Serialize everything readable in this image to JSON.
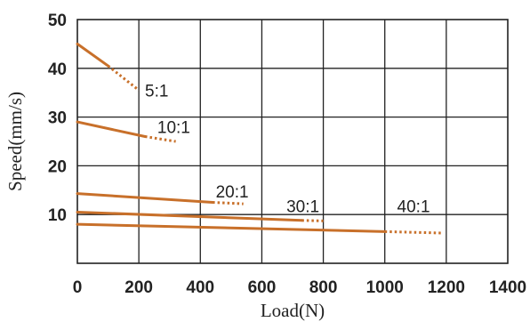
{
  "chart_data": {
    "type": "line",
    "xlabel": "Load(N)",
    "ylabel": "Speed(mm/s)",
    "xlim": [
      0,
      1400
    ],
    "ylim": [
      0,
      50
    ],
    "x_ticks": [
      "0",
      "200",
      "400",
      "600",
      "800",
      "1000",
      "1200",
      "1400"
    ],
    "y_ticks": [
      "10",
      "20",
      "30",
      "40",
      "50"
    ],
    "grid": true,
    "line_color": "#c8702a",
    "series": [
      {
        "name": "5:1",
        "solid": [
          [
            0,
            45
          ],
          [
            100,
            40.5
          ]
        ],
        "dotted": [
          [
            100,
            40.5
          ],
          [
            200,
            35.5
          ]
        ],
        "label_at": [
          220,
          35.5
        ]
      },
      {
        "name": "10:1",
        "solid": [
          [
            0,
            29
          ],
          [
            220,
            26
          ]
        ],
        "dotted": [
          [
            220,
            26
          ],
          [
            320,
            25
          ]
        ],
        "label_at": [
          260,
          28
        ]
      },
      {
        "name": "20:1",
        "solid": [
          [
            0,
            14.3
          ],
          [
            440,
            12.5
          ]
        ],
        "dotted": [
          [
            440,
            12.5
          ],
          [
            540,
            12.2
          ]
        ],
        "label_at": [
          450,
          14.8
        ]
      },
      {
        "name": "30:1",
        "solid": [
          [
            0,
            10.5
          ],
          [
            730,
            8.8
          ]
        ],
        "dotted": [
          [
            730,
            8.8
          ],
          [
            800,
            8.7
          ]
        ],
        "label_at": [
          680,
          11.8
        ]
      },
      {
        "name": "40:1",
        "solid": [
          [
            0,
            8
          ],
          [
            1000,
            6.5
          ]
        ],
        "dotted": [
          [
            1000,
            6.5
          ],
          [
            1190,
            6.2
          ]
        ],
        "label_at": [
          1040,
          11.8
        ]
      }
    ]
  }
}
